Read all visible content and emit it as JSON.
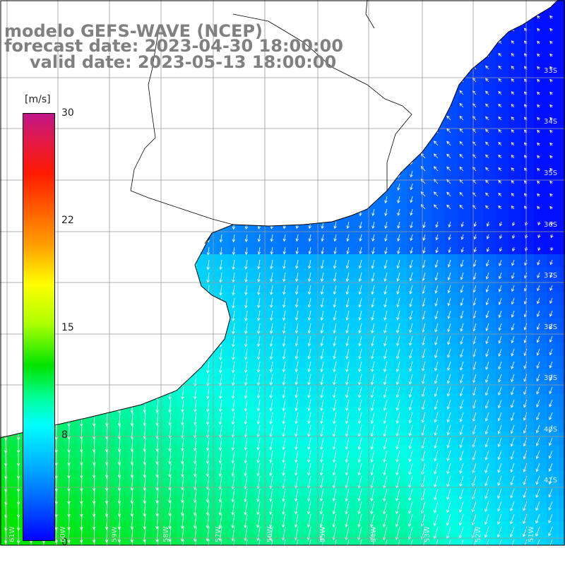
{
  "title": {
    "line1": "modelo GEFS-WAVE (NCEP)",
    "line2": "forecast date: 2023-04-30 18:00:00",
    "line3": "valid date: 2023-05-13 18:00:00"
  },
  "colorbar": {
    "unit": "[m/s]",
    "ticks": [
      "30",
      "22",
      "15",
      "8",
      "0"
    ],
    "colors": [
      "#c0168a",
      "#ff1a00",
      "#ffa000",
      "#ffff00",
      "#00e400",
      "#00ffff",
      "#0060ff",
      "#0000ff"
    ]
  },
  "map": {
    "land_color": "#ffffff",
    "grid_color": "#9a9a9a",
    "coast_color": "#000000",
    "lon_labels": [
      "61W",
      "60W",
      "59W",
      "58W",
      "57W",
      "56W",
      "55W",
      "54W",
      "53W",
      "52W",
      "51W"
    ],
    "lat_labels": [
      "33S",
      "34S",
      "35S",
      "36S",
      "37S",
      "38S",
      "39S",
      "40S",
      "41S"
    ]
  }
}
